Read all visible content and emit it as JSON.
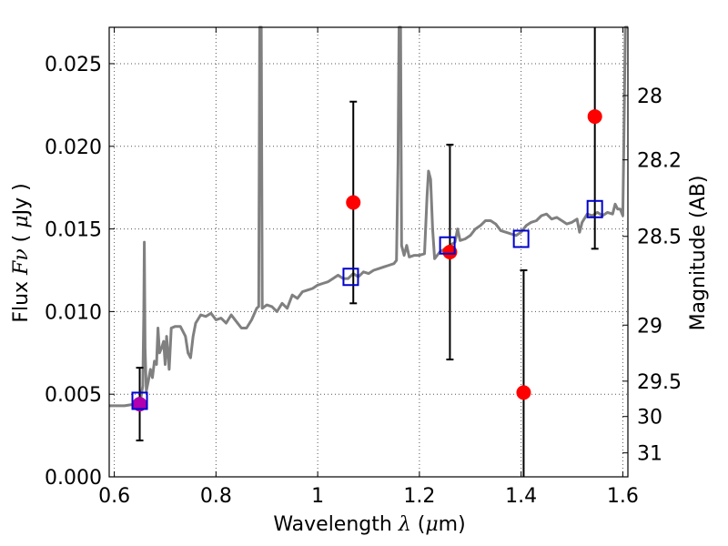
{
  "chart_data": {
    "type": "scatter",
    "xlabel": "Wavelength  λ (μm)",
    "ylabel": "Flux  Fν  ( μJy )",
    "y2label": "Magnitude (AB)",
    "xlim": [
      0.59,
      1.61
    ],
    "ylim": [
      0.0,
      0.0272
    ],
    "grid": true,
    "x_ticks": [
      0.6,
      0.8,
      1.0,
      1.2,
      1.4,
      1.6
    ],
    "x_tick_labels": [
      "0.6",
      "0.8",
      "1",
      "1.2",
      "1.4",
      "1.6"
    ],
    "y_ticks": [
      0.0,
      0.005,
      0.01,
      0.015,
      0.02,
      0.025
    ],
    "y_tick_labels": [
      "0.000",
      "0.005",
      "0.010",
      "0.015",
      "0.020",
      "0.025"
    ],
    "y2_ticks": [
      {
        "label": "28",
        "flux": 0.02307
      },
      {
        "label": "28.2",
        "flux": 0.01918
      },
      {
        "label": "28.5",
        "flux": 0.01455
      },
      {
        "label": "29",
        "flux": 0.00918
      },
      {
        "label": "29.5",
        "flux": 0.00579
      },
      {
        "label": "30",
        "flux": 0.00365
      },
      {
        "label": "31",
        "flux": 0.00145
      }
    ],
    "colors": {
      "model_line": "#808080",
      "observed": "#ff0000",
      "first_point": "#b000b0",
      "model_box": "#0000cc",
      "errorbar": "#000000",
      "grid": "#555555"
    },
    "series": [
      {
        "kind": "line",
        "points": [
          [
            0.59,
            0.0043
          ],
          [
            0.6,
            0.0043
          ],
          [
            0.62,
            0.0043
          ],
          [
            0.64,
            0.0044
          ],
          [
            0.648,
            0.0045
          ],
          [
            0.652,
            0.0047
          ],
          [
            0.656,
            0.0055
          ],
          [
            0.658,
            0.0098
          ],
          [
            0.659,
            0.0142
          ],
          [
            0.6605,
            0.0078
          ],
          [
            0.663,
            0.0052
          ],
          [
            0.667,
            0.0058
          ],
          [
            0.671,
            0.0065
          ],
          [
            0.675,
            0.006
          ],
          [
            0.679,
            0.007
          ],
          [
            0.683,
            0.0068
          ],
          [
            0.686,
            0.009
          ],
          [
            0.689,
            0.0075
          ],
          [
            0.693,
            0.0078
          ],
          [
            0.697,
            0.0082
          ],
          [
            0.7,
            0.0068
          ],
          [
            0.703,
            0.0085
          ],
          [
            0.708,
            0.0065
          ],
          [
            0.712,
            0.009
          ],
          [
            0.72,
            0.0091
          ],
          [
            0.73,
            0.0091
          ],
          [
            0.74,
            0.0085
          ],
          [
            0.745,
            0.0075
          ],
          [
            0.75,
            0.0072
          ],
          [
            0.755,
            0.0085
          ],
          [
            0.76,
            0.0093
          ],
          [
            0.77,
            0.0098
          ],
          [
            0.78,
            0.0097
          ],
          [
            0.79,
            0.0099
          ],
          [
            0.8,
            0.0095
          ],
          [
            0.81,
            0.0096
          ],
          [
            0.82,
            0.0093
          ],
          [
            0.83,
            0.0098
          ],
          [
            0.84,
            0.0094
          ],
          [
            0.85,
            0.009
          ],
          [
            0.86,
            0.009
          ],
          [
            0.87,
            0.0095
          ],
          [
            0.88,
            0.0102
          ],
          [
            0.884,
            0.0103
          ],
          [
            0.886,
            0.0272
          ],
          [
            0.889,
            0.0272
          ],
          [
            0.891,
            0.0102
          ],
          [
            0.9,
            0.0104
          ],
          [
            0.91,
            0.0103
          ],
          [
            0.92,
            0.01
          ],
          [
            0.93,
            0.0105
          ],
          [
            0.94,
            0.0102
          ],
          [
            0.95,
            0.011
          ],
          [
            0.96,
            0.0108
          ],
          [
            0.97,
            0.0112
          ],
          [
            0.98,
            0.0113
          ],
          [
            0.99,
            0.0114
          ],
          [
            1.0,
            0.0116
          ],
          [
            1.01,
            0.0117
          ],
          [
            1.02,
            0.0118
          ],
          [
            1.03,
            0.012
          ],
          [
            1.04,
            0.0122
          ],
          [
            1.05,
            0.012
          ],
          [
            1.06,
            0.012
          ],
          [
            1.07,
            0.0123
          ],
          [
            1.08,
            0.0121
          ],
          [
            1.09,
            0.0124
          ],
          [
            1.1,
            0.0123
          ],
          [
            1.11,
            0.0125
          ],
          [
            1.12,
            0.0126
          ],
          [
            1.13,
            0.0127
          ],
          [
            1.14,
            0.0128
          ],
          [
            1.15,
            0.0129
          ],
          [
            1.155,
            0.0131
          ],
          [
            1.158,
            0.019
          ],
          [
            1.16,
            0.0272
          ],
          [
            1.163,
            0.0272
          ],
          [
            1.165,
            0.014
          ],
          [
            1.17,
            0.0134
          ],
          [
            1.175,
            0.014
          ],
          [
            1.18,
            0.0133
          ],
          [
            1.19,
            0.0134
          ],
          [
            1.2,
            0.0134
          ],
          [
            1.21,
            0.0135
          ],
          [
            1.215,
            0.017
          ],
          [
            1.218,
            0.0185
          ],
          [
            1.222,
            0.018
          ],
          [
            1.226,
            0.015
          ],
          [
            1.23,
            0.0132
          ],
          [
            1.24,
            0.0136
          ],
          [
            1.25,
            0.0138
          ],
          [
            1.26,
            0.014
          ],
          [
            1.27,
            0.0142
          ],
          [
            1.275,
            0.015
          ],
          [
            1.28,
            0.0143
          ],
          [
            1.29,
            0.0144
          ],
          [
            1.3,
            0.0146
          ],
          [
            1.31,
            0.015
          ],
          [
            1.32,
            0.0152
          ],
          [
            1.33,
            0.0155
          ],
          [
            1.34,
            0.0155
          ],
          [
            1.35,
            0.0153
          ],
          [
            1.36,
            0.0149
          ],
          [
            1.37,
            0.0148
          ],
          [
            1.38,
            0.0147
          ],
          [
            1.39,
            0.0146
          ],
          [
            1.4,
            0.0148
          ],
          [
            1.41,
            0.0152
          ],
          [
            1.42,
            0.0154
          ],
          [
            1.43,
            0.0155
          ],
          [
            1.44,
            0.0158
          ],
          [
            1.45,
            0.0159
          ],
          [
            1.46,
            0.0156
          ],
          [
            1.47,
            0.0157
          ],
          [
            1.48,
            0.0155
          ],
          [
            1.49,
            0.0153
          ],
          [
            1.5,
            0.0154
          ],
          [
            1.51,
            0.0156
          ],
          [
            1.515,
            0.0148
          ],
          [
            1.52,
            0.0154
          ],
          [
            1.53,
            0.0159
          ],
          [
            1.54,
            0.0158
          ],
          [
            1.55,
            0.016
          ],
          [
            1.56,
            0.0158
          ],
          [
            1.57,
            0.016
          ],
          [
            1.58,
            0.0159
          ],
          [
            1.585,
            0.0165
          ],
          [
            1.59,
            0.0162
          ],
          [
            1.595,
            0.0162
          ],
          [
            1.6,
            0.0158
          ],
          [
            1.602,
            0.02
          ],
          [
            1.605,
            0.0272
          ],
          [
            1.61,
            0.0272
          ]
        ]
      },
      {
        "kind": "errorbar",
        "points": [
          {
            "x": 0.65,
            "y": 0.0044,
            "lo": 0.0022,
            "hi": 0.0066
          },
          {
            "x": 1.07,
            "y": 0.0166,
            "lo": 0.0105,
            "hi": 0.0227
          },
          {
            "x": 1.26,
            "y": 0.0136,
            "lo": 0.0071,
            "hi": 0.0201
          },
          {
            "x": 1.405,
            "y": 0.0051,
            "lo": 0.0,
            "hi": 0.0125
          },
          {
            "x": 1.545,
            "y": 0.0218,
            "lo": 0.0138,
            "hi": 0.0272
          }
        ]
      },
      {
        "kind": "marker-square",
        "points": [
          {
            "x": 0.65,
            "y": 0.0046
          },
          {
            "x": 1.065,
            "y": 0.0121
          },
          {
            "x": 1.255,
            "y": 0.014
          },
          {
            "x": 1.4,
            "y": 0.0144
          },
          {
            "x": 1.545,
            "y": 0.0162
          }
        ]
      }
    ]
  }
}
